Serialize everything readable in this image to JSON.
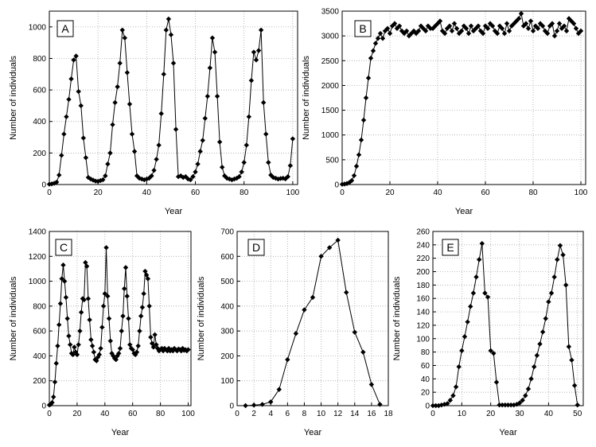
{
  "chart_data": [
    {
      "type": "line",
      "panel_label": "A",
      "xlabel": "Year",
      "ylabel": "Number of individuals",
      "xlim": [
        0,
        102
      ],
      "ylim": [
        0,
        1100
      ],
      "xticks": [
        0,
        20,
        40,
        60,
        80,
        100
      ],
      "yticks": [
        0,
        200,
        400,
        600,
        800,
        1000
      ],
      "grid": "dotted",
      "x": [
        0,
        1,
        2,
        3,
        4,
        5,
        6,
        7,
        8,
        9,
        10,
        11,
        12,
        13,
        14,
        15,
        16,
        17,
        18,
        19,
        20,
        21,
        22,
        23,
        24,
        25,
        26,
        27,
        28,
        29,
        30,
        31,
        32,
        33,
        34,
        35,
        36,
        37,
        38,
        39,
        40,
        41,
        42,
        43,
        44,
        45,
        46,
        47,
        48,
        49,
        50,
        51,
        52,
        53,
        54,
        55,
        56,
        57,
        58,
        59,
        60,
        61,
        62,
        63,
        64,
        65,
        66,
        67,
        68,
        69,
        70,
        71,
        72,
        73,
        74,
        75,
        76,
        77,
        78,
        79,
        80,
        81,
        82,
        83,
        84,
        85,
        86,
        87,
        88,
        89,
        90,
        91,
        92,
        93,
        94,
        95,
        96,
        97,
        98,
        99,
        100
      ],
      "values": [
        2,
        4,
        8,
        15,
        60,
        185,
        320,
        430,
        540,
        670,
        790,
        815,
        590,
        500,
        295,
        170,
        45,
        35,
        28,
        22,
        20,
        25,
        30,
        55,
        130,
        200,
        380,
        520,
        620,
        770,
        980,
        930,
        710,
        510,
        320,
        210,
        55,
        40,
        35,
        30,
        35,
        40,
        55,
        90,
        160,
        250,
        450,
        700,
        980,
        1050,
        950,
        770,
        350,
        50,
        55,
        45,
        50,
        35,
        30,
        50,
        80,
        130,
        210,
        280,
        420,
        560,
        740,
        930,
        840,
        560,
        270,
        110,
        55,
        40,
        35,
        30,
        35,
        40,
        50,
        80,
        140,
        250,
        430,
        660,
        840,
        790,
        850,
        980,
        520,
        320,
        140,
        60,
        45,
        40,
        35,
        38,
        40,
        36,
        50,
        120,
        290
      ]
    },
    {
      "type": "line",
      "panel_label": "B",
      "xlabel": "Year",
      "ylabel": "Number of individuals",
      "xlim": [
        0,
        102
      ],
      "ylim": [
        0,
        3500
      ],
      "xticks": [
        0,
        20,
        40,
        60,
        80,
        100
      ],
      "yticks": [
        0,
        500,
        1000,
        1500,
        2000,
        2500,
        3000,
        3500
      ],
      "grid": "dotted",
      "x": [
        0,
        1,
        2,
        3,
        4,
        5,
        6,
        7,
        8,
        9,
        10,
        11,
        12,
        13,
        14,
        15,
        16,
        17,
        18,
        19,
        20,
        21,
        22,
        23,
        24,
        25,
        26,
        27,
        28,
        29,
        30,
        31,
        32,
        33,
        34,
        35,
        36,
        37,
        38,
        39,
        40,
        41,
        42,
        43,
        44,
        45,
        46,
        47,
        48,
        49,
        50,
        51,
        52,
        53,
        54,
        55,
        56,
        57,
        58,
        59,
        60,
        61,
        62,
        63,
        64,
        65,
        66,
        67,
        68,
        69,
        70,
        71,
        72,
        73,
        74,
        75,
        76,
        77,
        78,
        79,
        80,
        81,
        82,
        83,
        84,
        85,
        86,
        87,
        88,
        89,
        90,
        91,
        92,
        93,
        94,
        95,
        96,
        97,
        98,
        99,
        100
      ],
      "values": [
        5,
        10,
        20,
        40,
        80,
        180,
        370,
        600,
        900,
        1300,
        1750,
        2150,
        2550,
        2700,
        2850,
        2950,
        3050,
        2950,
        3100,
        3150,
        3050,
        3200,
        3250,
        3150,
        3200,
        3100,
        3050,
        3100,
        3000,
        3050,
        3100,
        3050,
        3100,
        3200,
        3150,
        3100,
        3200,
        3150,
        3150,
        3200,
        3250,
        3300,
        3100,
        3050,
        3150,
        3200,
        3100,
        3250,
        3150,
        3050,
        3100,
        3200,
        3150,
        3050,
        3200,
        3100,
        3150,
        3200,
        3100,
        3050,
        3200,
        3150,
        3250,
        3200,
        3100,
        3050,
        3200,
        3150,
        3050,
        3250,
        3100,
        3200,
        3250,
        3300,
        3350,
        3450,
        3200,
        3250,
        3150,
        3300,
        3100,
        3200,
        3150,
        3250,
        3200,
        3100,
        3050,
        3200,
        3250,
        3000,
        3100,
        3250,
        3150,
        3200,
        3100,
        3350,
        3300,
        3250,
        3150,
        3050,
        3100
      ]
    },
    {
      "type": "line",
      "panel_label": "C",
      "xlabel": "Year",
      "ylabel": "Number of individuals",
      "xlim": [
        0,
        102
      ],
      "ylim": [
        0,
        1400
      ],
      "xticks": [
        0,
        20,
        40,
        60,
        80,
        100
      ],
      "yticks": [
        0,
        200,
        400,
        600,
        800,
        1000,
        1200,
        1400
      ],
      "grid": "dotted",
      "x": [
        0,
        1,
        2,
        3,
        4,
        5,
        6,
        7,
        8,
        9,
        10,
        11,
        12,
        13,
        14,
        15,
        16,
        17,
        18,
        19,
        20,
        21,
        22,
        23,
        24,
        25,
        26,
        27,
        28,
        29,
        30,
        31,
        32,
        33,
        34,
        35,
        36,
        37,
        38,
        39,
        40,
        41,
        42,
        43,
        44,
        45,
        46,
        47,
        48,
        49,
        50,
        51,
        52,
        53,
        54,
        55,
        56,
        57,
        58,
        59,
        60,
        61,
        62,
        63,
        64,
        65,
        66,
        67,
        68,
        69,
        70,
        71,
        72,
        73,
        74,
        75,
        76,
        77,
        78,
        79,
        80,
        81,
        82,
        83,
        84,
        85,
        86,
        87,
        88,
        89,
        90,
        91,
        92,
        93,
        94,
        95,
        96,
        97,
        98,
        99,
        100
      ],
      "values": [
        5,
        10,
        25,
        70,
        190,
        340,
        480,
        650,
        820,
        1020,
        1130,
        1000,
        870,
        700,
        560,
        490,
        420,
        410,
        470,
        430,
        410,
        490,
        600,
        750,
        860,
        850,
        1150,
        1120,
        860,
        690,
        530,
        480,
        430,
        370,
        360,
        390,
        410,
        460,
        630,
        800,
        900,
        1270,
        880,
        700,
        520,
        420,
        400,
        380,
        370,
        400,
        420,
        460,
        600,
        720,
        940,
        1110,
        880,
        700,
        490,
        460,
        450,
        420,
        410,
        430,
        480,
        600,
        720,
        790,
        900,
        1080,
        1050,
        1020,
        800,
        550,
        500,
        470,
        570,
        490,
        460,
        440,
        450,
        460,
        440,
        460,
        450,
        440,
        460,
        440,
        450,
        440,
        460,
        450,
        440,
        455,
        450,
        440,
        460,
        445,
        450,
        440,
        450
      ]
    },
    {
      "type": "line",
      "panel_label": "D",
      "xlabel": "Year",
      "ylabel": "Number of individuals",
      "xlim": [
        0,
        18
      ],
      "ylim": [
        0,
        700
      ],
      "xticks": [
        0,
        2,
        4,
        6,
        8,
        10,
        12,
        14,
        16,
        18
      ],
      "yticks": [
        0,
        100,
        200,
        300,
        400,
        500,
        600,
        700
      ],
      "grid": "dotted",
      "x": [
        1,
        2,
        3,
        4,
        5,
        6,
        7,
        8,
        9,
        10,
        11,
        12,
        13,
        14,
        15,
        16,
        17
      ],
      "values": [
        0,
        2,
        5,
        15,
        65,
        185,
        290,
        385,
        435,
        600,
        635,
        665,
        455,
        295,
        215,
        85,
        5
      ]
    },
    {
      "type": "line",
      "panel_label": "E",
      "xlabel": "Year",
      "ylabel": "Number of individuals",
      "xlim": [
        0,
        52
      ],
      "ylim": [
        0,
        260
      ],
      "xticks": [
        0,
        10,
        20,
        30,
        40,
        50
      ],
      "yticks": [
        0,
        20,
        40,
        60,
        80,
        100,
        120,
        140,
        160,
        180,
        200,
        220,
        240,
        260
      ],
      "grid": "dotted",
      "x": [
        0,
        1,
        2,
        3,
        4,
        5,
        6,
        7,
        8,
        9,
        10,
        11,
        12,
        13,
        14,
        15,
        16,
        17,
        18,
        19,
        20,
        21,
        22,
        23,
        24,
        25,
        26,
        27,
        28,
        29,
        30,
        31,
        32,
        33,
        34,
        35,
        36,
        37,
        38,
        39,
        40,
        41,
        42,
        43,
        44,
        45,
        46,
        47,
        48,
        49,
        50
      ],
      "values": [
        0,
        0,
        0,
        1,
        2,
        3,
        8,
        15,
        28,
        58,
        82,
        103,
        125,
        148,
        168,
        192,
        218,
        242,
        168,
        162,
        82,
        78,
        35,
        1,
        1,
        1,
        1,
        1,
        1,
        2,
        4,
        8,
        15,
        25,
        40,
        58,
        75,
        92,
        110,
        130,
        155,
        168,
        192,
        218,
        239,
        225,
        180,
        88,
        68,
        30,
        1
      ]
    }
  ]
}
